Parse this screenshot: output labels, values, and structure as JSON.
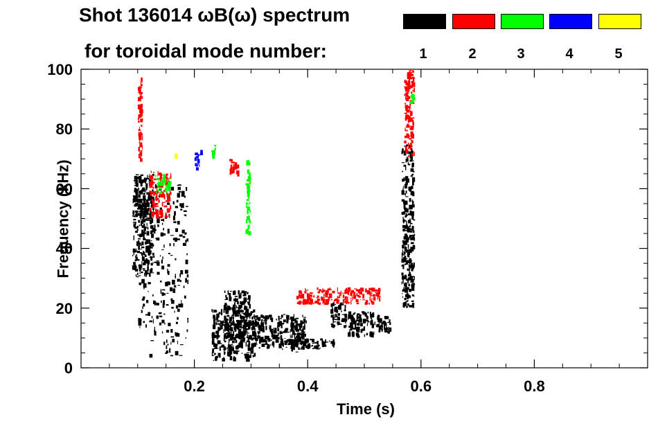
{
  "title_line1": "Shot 136014 ωB(ω) spectrum",
  "title_line2": "for toroidal mode number:",
  "legend": [
    {
      "label": "1",
      "color": "#000000"
    },
    {
      "label": "2",
      "color": "#ff0000"
    },
    {
      "label": "3",
      "color": "#00ff00"
    },
    {
      "label": "4",
      "color": "#0000ff"
    },
    {
      "label": "5",
      "color": "#ffff00"
    }
  ],
  "chart_data": {
    "type": "heatmap",
    "title": "Shot 136014 ωB(ω) spectrum for toroidal mode number: 1 2 3 4 5",
    "xlabel": "Time (s)",
    "ylabel": "Frequency (kHz)",
    "xlim": [
      0.0,
      1.0
    ],
    "ylim": [
      0,
      100
    ],
    "x_ticks": [
      0.2,
      0.4,
      0.6,
      0.8
    ],
    "x_tick_labels": [
      "0.2",
      "0.4",
      "0.6",
      "0.8"
    ],
    "y_ticks": [
      0,
      20,
      40,
      60,
      80,
      100
    ],
    "y_tick_labels": [
      "0",
      "20",
      "40",
      "60",
      "80",
      "100"
    ],
    "grid": false,
    "legend_position": "top-right",
    "series": [
      {
        "name": "1",
        "color": "#000000",
        "regions": [
          {
            "t": [
              0.09,
              0.13
            ],
            "f": [
              30,
              65
            ]
          },
          {
            "t": [
              0.1,
              0.19
            ],
            "f": [
              3,
              62
            ]
          },
          {
            "t": [
              0.23,
              0.31
            ],
            "f": [
              2,
              20
            ]
          },
          {
            "t": [
              0.25,
              0.3
            ],
            "f": [
              8,
              26
            ]
          },
          {
            "t": [
              0.3,
              0.4
            ],
            "f": [
              6,
              18
            ]
          },
          {
            "t": [
              0.37,
              0.39
            ],
            "f": [
              5,
              12
            ]
          },
          {
            "t": [
              0.39,
              0.45
            ],
            "f": [
              6,
              10
            ]
          },
          {
            "t": [
              0.44,
              0.47
            ],
            "f": [
              13,
              22
            ]
          },
          {
            "t": [
              0.47,
              0.52
            ],
            "f": [
              10,
              19
            ]
          },
          {
            "t": [
              0.52,
              0.55
            ],
            "f": [
              11,
              18
            ]
          },
          {
            "t": [
              0.565,
              0.59
            ],
            "f": [
              20,
              75
            ]
          }
        ]
      },
      {
        "name": "2",
        "color": "#ff0000",
        "regions": [
          {
            "t": [
              0.1,
              0.11
            ],
            "f": [
              68,
              98
            ]
          },
          {
            "t": [
              0.12,
              0.16
            ],
            "f": [
              50,
              66
            ]
          },
          {
            "t": [
              0.26,
              0.28
            ],
            "f": [
              64,
              70
            ]
          },
          {
            "t": [
              0.38,
              0.53
            ],
            "f": [
              21,
              27
            ]
          },
          {
            "t": [
              0.57,
              0.59
            ],
            "f": [
              70,
              100
            ]
          }
        ]
      },
      {
        "name": "3",
        "color": "#00ff00",
        "regions": [
          {
            "t": [
              0.13,
              0.16
            ],
            "f": [
              58,
              65
            ]
          },
          {
            "t": [
              0.23,
              0.24
            ],
            "f": [
              70,
              75
            ]
          },
          {
            "t": [
              0.29,
              0.3
            ],
            "f": [
              44,
              70
            ]
          },
          {
            "t": [
              0.58,
              0.59
            ],
            "f": [
              88,
              93
            ]
          }
        ]
      },
      {
        "name": "4",
        "color": "#0000ff",
        "regions": [
          {
            "t": [
              0.2,
              0.21
            ],
            "f": [
              66,
              73
            ]
          },
          {
            "t": [
              0.21,
              0.215
            ],
            "f": [
              71,
              73
            ]
          }
        ]
      },
      {
        "name": "5",
        "color": "#ffff00",
        "regions": [
          {
            "t": [
              0.165,
              0.17
            ],
            "f": [
              70,
              72
            ]
          }
        ]
      }
    ]
  }
}
